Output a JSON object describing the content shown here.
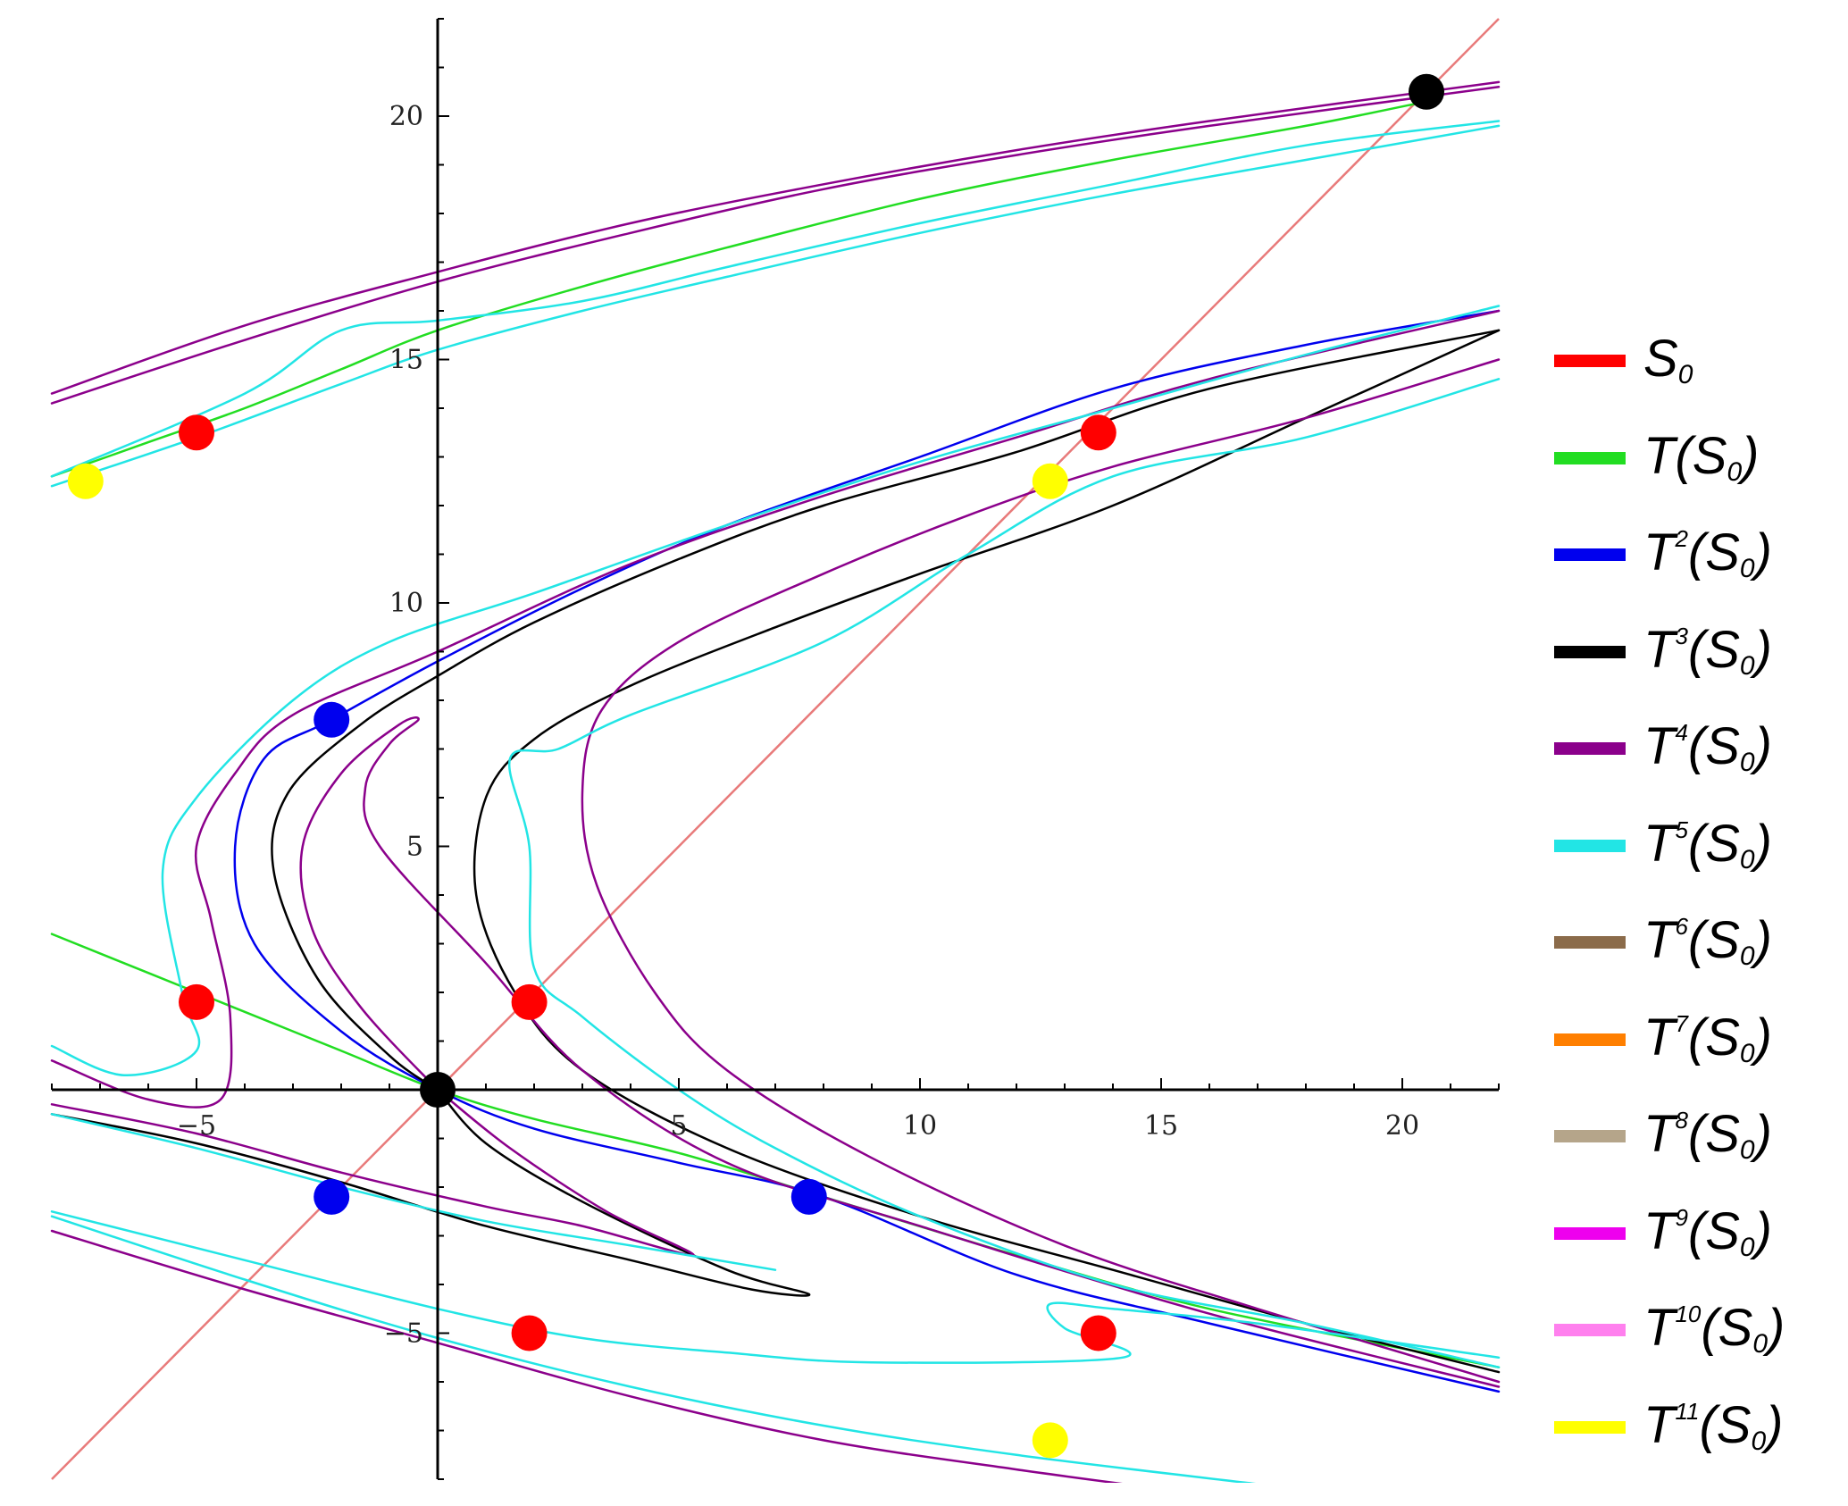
{
  "chart_data": {
    "type": "line",
    "title": "",
    "xlabel": "",
    "ylabel": "",
    "xlim": [
      -8,
      22
    ],
    "ylim": [
      -8,
      22
    ],
    "x_ticks": [
      -5,
      5,
      10,
      15,
      20
    ],
    "y_ticks": [
      -5,
      5,
      10,
      15,
      20
    ],
    "x_tick_labels": [
      "−5",
      "5",
      "10",
      "15",
      "20"
    ],
    "y_tick_labels": [
      "−5",
      "5",
      "10",
      "15",
      "20"
    ],
    "diagonal": {
      "color": "#e87a7a",
      "from": [
        -8,
        -8
      ],
      "to": [
        22,
        22
      ]
    },
    "legend_position": "right",
    "series": [
      {
        "name": "S0",
        "base": "S",
        "sup": "",
        "sub": "0",
        "color": "#ff0000"
      },
      {
        "name": "T(S0)",
        "base": "T(S",
        "sup": "",
        "sub": "0",
        "color": "#22dd22"
      },
      {
        "name": "T2(S0)",
        "base": "T",
        "sup": "2",
        "sub": "0",
        "color": "#0000ee"
      },
      {
        "name": "T3(S0)",
        "base": "T",
        "sup": "3",
        "sub": "0",
        "color": "#000000"
      },
      {
        "name": "T4(S0)",
        "base": "T",
        "sup": "4",
        "sub": "0",
        "color": "#8b008b"
      },
      {
        "name": "T5(S0)",
        "base": "T",
        "sup": "5",
        "sub": "0",
        "color": "#22e5e5"
      },
      {
        "name": "T6(S0)",
        "base": "T",
        "sup": "6",
        "sub": "0",
        "color": "#8b6b4a"
      },
      {
        "name": "T7(S0)",
        "base": "T",
        "sup": "7",
        "sub": "0",
        "color": "#ff7f00"
      },
      {
        "name": "T8(S0)",
        "base": "T",
        "sup": "8",
        "sub": "0",
        "color": "#b5a58a"
      },
      {
        "name": "T9(S0)",
        "base": "T",
        "sup": "9",
        "sub": "0",
        "color": "#ee00ee"
      },
      {
        "name": "T10(S0)",
        "base": "T",
        "sup": "10",
        "sub": "0",
        "color": "#ff80ee"
      },
      {
        "name": "T11(S0)",
        "base": "T",
        "sup": "11",
        "sub": "0",
        "color": "#ffff00"
      }
    ],
    "curves": [
      {
        "color": "#22dd22",
        "width": 2.5,
        "points": [
          [
            -8,
            3.2
          ],
          [
            -6,
            2.4
          ],
          [
            -4,
            1.6
          ],
          [
            -2,
            0.8
          ],
          [
            0,
            0
          ],
          [
            2,
            -0.6
          ],
          [
            5,
            -1.3
          ],
          [
            8,
            -2.2
          ],
          [
            12,
            -3.4
          ],
          [
            16,
            -4.5
          ],
          [
            22,
            -5.7
          ]
        ]
      },
      {
        "color": "#22dd22",
        "width": 2.5,
        "points": [
          [
            -8,
            12.6
          ],
          [
            -6,
            13.3
          ],
          [
            -4,
            14.0
          ],
          [
            -2,
            14.8
          ],
          [
            0,
            15.6
          ],
          [
            3,
            16.5
          ],
          [
            6,
            17.3
          ],
          [
            10,
            18.3
          ],
          [
            14,
            19.1
          ],
          [
            18,
            19.8
          ],
          [
            20.5,
            20.3
          ]
        ]
      },
      {
        "color": "#0000ee",
        "width": 2.5,
        "points": [
          [
            22,
            -6.2
          ],
          [
            16,
            -4.8
          ],
          [
            12,
            -3.8
          ],
          [
            8,
            -2.2
          ],
          [
            5,
            -1.5
          ],
          [
            2,
            -0.8
          ],
          [
            0,
            0
          ],
          [
            -2,
            1.2
          ],
          [
            -3.8,
            3.0
          ],
          [
            -4.2,
            5.0
          ],
          [
            -3.6,
            6.8
          ],
          [
            -2.2,
            7.6
          ],
          [
            0,
            8.8
          ],
          [
            3,
            10.3
          ],
          [
            6,
            11.6
          ],
          [
            10,
            13.0
          ],
          [
            14,
            14.4
          ],
          [
            18,
            15.3
          ],
          [
            22,
            16.0
          ]
        ]
      },
      {
        "color": "#000000",
        "width": 2.5,
        "points": [
          [
            22,
            -5.8
          ],
          [
            18,
            -4.8
          ],
          [
            14,
            -3.7
          ],
          [
            10,
            -2.6
          ],
          [
            6,
            -1.2
          ],
          [
            3,
            0.4
          ],
          [
            1.6,
            2.0
          ],
          [
            0.8,
            4.0
          ],
          [
            1.0,
            6.0
          ],
          [
            2.0,
            7.2
          ],
          [
            4,
            8.3
          ],
          [
            7,
            9.5
          ],
          [
            10,
            10.6
          ],
          [
            14,
            12.0
          ],
          [
            18,
            13.8
          ],
          [
            22,
            15.6
          ]
        ]
      },
      {
        "color": "#000000",
        "width": 2.5,
        "points": [
          [
            0,
            0
          ],
          [
            -1,
            0.7
          ],
          [
            -2.5,
            2.3
          ],
          [
            -3.4,
            4.5
          ],
          [
            -3.1,
            6.1
          ],
          [
            -1.6,
            7.5
          ],
          [
            0,
            8.5
          ],
          [
            2,
            9.6
          ],
          [
            5,
            10.9
          ],
          [
            8,
            12.0
          ],
          [
            12,
            13.1
          ],
          [
            16,
            14.4
          ],
          [
            22,
            15.6
          ]
        ]
      },
      {
        "color": "#000000",
        "width": 2.5,
        "points": [
          [
            -8,
            -0.5
          ],
          [
            -5,
            -1.1
          ],
          [
            -2,
            -1.9
          ],
          [
            1,
            -2.8
          ],
          [
            4,
            -3.5
          ],
          [
            6.5,
            -4.1
          ],
          [
            7.7,
            -4.2
          ],
          [
            6,
            -3.7
          ],
          [
            3,
            -2.3
          ],
          [
            1,
            -1.1
          ],
          [
            0,
            0
          ]
        ]
      },
      {
        "color": "#8b008b",
        "width": 2.5,
        "points": [
          [
            -8,
            14.3
          ],
          [
            -4,
            15.7
          ],
          [
            0,
            16.8
          ],
          [
            4,
            17.8
          ],
          [
            8,
            18.6
          ],
          [
            12,
            19.3
          ],
          [
            16,
            19.9
          ],
          [
            22,
            20.7
          ]
        ]
      },
      {
        "color": "#8b008b",
        "width": 2.5,
        "points": [
          [
            -8,
            14.1
          ],
          [
            -4,
            15.4
          ],
          [
            0,
            16.6
          ],
          [
            4,
            17.6
          ],
          [
            8,
            18.5
          ],
          [
            12,
            19.2
          ],
          [
            16,
            19.8
          ],
          [
            22,
            20.6
          ]
        ]
      },
      {
        "color": "#8b008b",
        "width": 2.5,
        "points": [
          [
            22,
            15.0
          ],
          [
            18,
            13.8
          ],
          [
            14,
            12.8
          ],
          [
            11,
            11.8
          ],
          [
            8,
            10.6
          ],
          [
            5,
            9.2
          ],
          [
            3.4,
            7.8
          ],
          [
            3.0,
            6.1
          ],
          [
            3.3,
            4.2
          ],
          [
            4.5,
            2.0
          ],
          [
            6,
            0.4
          ],
          [
            9,
            -1.4
          ],
          [
            13,
            -3.2
          ],
          [
            17,
            -4.5
          ],
          [
            22,
            -6.0
          ]
        ]
      },
      {
        "color": "#8b008b",
        "width": 2.5,
        "points": [
          [
            22,
            -6.1
          ],
          [
            16,
            -4.6
          ],
          [
            10,
            -2.8
          ],
          [
            6,
            -1.5
          ],
          [
            3,
            0.4
          ],
          [
            1,
            2.6
          ],
          [
            -1.2,
            5.0
          ],
          [
            -1.5,
            6.2
          ],
          [
            -1.0,
            7.1
          ],
          [
            -0.4,
            7.6
          ],
          [
            -0.8,
            7.5
          ],
          [
            -2.0,
            6.5
          ],
          [
            -2.8,
            5.0
          ],
          [
            -2.6,
            3.3
          ],
          [
            -1.6,
            1.7
          ],
          [
            0,
            0
          ]
        ]
      },
      {
        "color": "#8b008b",
        "width": 2.5,
        "points": [
          [
            -8,
            -0.3
          ],
          [
            -5,
            -0.9
          ],
          [
            -2,
            -1.7
          ],
          [
            1,
            -2.4
          ],
          [
            3,
            -2.8
          ],
          [
            5.3,
            -3.4
          ],
          [
            3.5,
            -2.5
          ],
          [
            1.5,
            -1.2
          ],
          [
            0,
            0
          ]
        ]
      },
      {
        "color": "#8b008b",
        "width": 2.5,
        "points": [
          [
            -8,
            0.6
          ],
          [
            -6,
            -0.2
          ],
          [
            -4.5,
            -0.2
          ],
          [
            -4.3,
            1.5
          ],
          [
            -4.7,
            3.5
          ],
          [
            -5,
            5.0
          ],
          [
            -4.2,
            6.5
          ],
          [
            -3,
            7.7
          ],
          [
            0,
            9.0
          ],
          [
            4,
            10.8
          ],
          [
            8,
            12.2
          ],
          [
            12,
            13.4
          ],
          [
            16,
            14.6
          ],
          [
            22,
            16.0
          ]
        ]
      },
      {
        "color": "#8b008b",
        "width": 2.5,
        "points": [
          [
            -8,
            -2.9
          ],
          [
            -4,
            -4.1
          ],
          [
            0,
            -5.2
          ],
          [
            4,
            -6.3
          ],
          [
            8,
            -7.2
          ],
          [
            12,
            -7.8
          ],
          [
            15,
            -8.2
          ]
        ]
      },
      {
        "color": "#22e5e5",
        "width": 2.5,
        "points": [
          [
            -8,
            12.4
          ],
          [
            -5,
            13.4
          ],
          [
            -2,
            14.5
          ],
          [
            0,
            15.2
          ],
          [
            3,
            16.0
          ],
          [
            6,
            16.7
          ],
          [
            10,
            17.6
          ],
          [
            14,
            18.4
          ],
          [
            18,
            19.1
          ],
          [
            22,
            19.8
          ]
        ]
      },
      {
        "color": "#22e5e5",
        "width": 2.5,
        "points": [
          [
            -8,
            12.6
          ],
          [
            -4,
            14.3
          ],
          [
            -2,
            15.6
          ],
          [
            0,
            15.8
          ],
          [
            3,
            16.2
          ],
          [
            6,
            16.9
          ],
          [
            10,
            17.8
          ],
          [
            14,
            18.6
          ],
          [
            18,
            19.4
          ],
          [
            22,
            19.9
          ]
        ]
      },
      {
        "color": "#22e5e5",
        "width": 2.5,
        "points": [
          [
            22,
            16.1
          ],
          [
            18,
            15.1
          ],
          [
            14,
            14.0
          ],
          [
            10,
            12.9
          ],
          [
            6,
            11.6
          ],
          [
            2,
            10.2
          ],
          [
            -1,
            9.2
          ],
          [
            -3,
            8.0
          ],
          [
            -5.0,
            6.0
          ],
          [
            -5.7,
            4.5
          ],
          [
            -5.3,
            2.0
          ],
          [
            -5.0,
            0.8
          ],
          [
            -6.5,
            0.3
          ],
          [
            -8,
            0.9
          ]
        ]
      },
      {
        "color": "#22e5e5",
        "width": 2.5,
        "points": [
          [
            22,
            14.6
          ],
          [
            18,
            13.4
          ],
          [
            14,
            12.6
          ],
          [
            11,
            11.0
          ],
          [
            8,
            9.2
          ],
          [
            4,
            7.7
          ],
          [
            2.5,
            7.0
          ],
          [
            1.5,
            6.8
          ],
          [
            1.9,
            5.0
          ],
          [
            2.0,
            2.5
          ],
          [
            3,
            1.5
          ],
          [
            5,
            0
          ],
          [
            7,
            -1.2
          ],
          [
            10,
            -2.6
          ],
          [
            14,
            -4.0
          ],
          [
            18,
            -4.8
          ],
          [
            22,
            -5.7
          ]
        ]
      },
      {
        "color": "#22e5e5",
        "width": 2.5,
        "points": [
          [
            -8,
            -2.5
          ],
          [
            -4,
            -3.5
          ],
          [
            0,
            -4.5
          ],
          [
            3,
            -5.1
          ],
          [
            6,
            -5.4
          ],
          [
            9,
            -5.6
          ],
          [
            14.2,
            -5.5
          ],
          [
            13,
            -4.9
          ],
          [
            12.7,
            -4.4
          ],
          [
            14,
            -4.5
          ],
          [
            17,
            -4.8
          ],
          [
            22,
            -5.5
          ]
        ]
      },
      {
        "color": "#22e5e5",
        "width": 2.5,
        "points": [
          [
            -8,
            -2.6
          ],
          [
            -4,
            -3.9
          ],
          [
            0,
            -5.1
          ],
          [
            4,
            -6.1
          ],
          [
            8,
            -6.9
          ],
          [
            12,
            -7.5
          ],
          [
            17,
            -8.1
          ]
        ]
      },
      {
        "color": "#22e5e5",
        "width": 2.5,
        "points": [
          [
            -8,
            -0.5
          ],
          [
            -5,
            -1.2
          ],
          [
            -2,
            -2.0
          ],
          [
            1,
            -2.7
          ],
          [
            4,
            -3.2
          ],
          [
            7,
            -3.7
          ]
        ]
      }
    ],
    "points": [
      {
        "series": "S0",
        "color": "#ff0000",
        "x": -5,
        "y": 13.5
      },
      {
        "series": "S0",
        "color": "#ff0000",
        "x": 13.7,
        "y": 13.5
      },
      {
        "series": "S0",
        "color": "#ff0000",
        "x": -5,
        "y": 1.8
      },
      {
        "series": "S0",
        "color": "#ff0000",
        "x": 1.9,
        "y": 1.8
      },
      {
        "series": "S0",
        "color": "#ff0000",
        "x": 1.9,
        "y": -5.0
      },
      {
        "series": "S0",
        "color": "#ff0000",
        "x": 13.7,
        "y": -5.0
      },
      {
        "series": "T2(S0)",
        "color": "#0000ee",
        "x": -2.2,
        "y": 7.6
      },
      {
        "series": "T2(S0)",
        "color": "#0000ee",
        "x": -2.2,
        "y": -2.2
      },
      {
        "series": "T2(S0)",
        "color": "#0000ee",
        "x": 7.7,
        "y": -2.2
      },
      {
        "series": "T3(S0)",
        "color": "#000000",
        "x": 0,
        "y": 0
      },
      {
        "series": "T3(S0)",
        "color": "#000000",
        "x": 20.5,
        "y": 20.5
      },
      {
        "series": "T11(S0)",
        "color": "#ffff00",
        "x": -7.3,
        "y": 12.5
      },
      {
        "series": "T11(S0)",
        "color": "#ffff00",
        "x": 12.7,
        "y": 12.5
      },
      {
        "series": "T11(S0)",
        "color": "#ffff00",
        "x": 12.7,
        "y": -7.2
      }
    ]
  }
}
